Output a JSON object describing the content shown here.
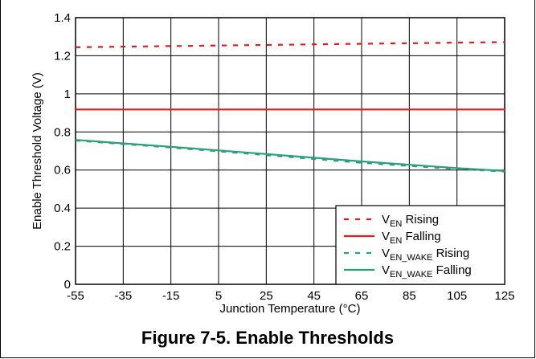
{
  "figure": {
    "caption": "Figure 7-5. Enable Thresholds"
  },
  "chart_data": {
    "type": "line",
    "xlabel": "Junction Temperature (°C)",
    "ylabel": "Enable Threshold Voltage (V)",
    "xlim": [
      -55,
      125
    ],
    "ylim": [
      0,
      1.4
    ],
    "x_ticks": [
      -55,
      -35,
      -15,
      5,
      25,
      45,
      65,
      85,
      105,
      125
    ],
    "y_ticks": [
      0,
      0.2,
      0.4,
      0.6,
      0.8,
      1,
      1.2,
      1.4
    ],
    "y_tick_labels": [
      "0",
      "0.2",
      "0.4",
      "0.6",
      "0.8",
      "1",
      "1.2",
      "1.4"
    ],
    "grid": true,
    "legend_position": "bottom-right",
    "series": [
      {
        "name_main": "V",
        "name_sub": "EN",
        "name_rest": " Rising",
        "color": "#e8191a",
        "dash": "dashed",
        "x": [
          -55,
          125
        ],
        "y": [
          1.245,
          1.272
        ]
      },
      {
        "name_main": "V",
        "name_sub": "EN",
        "name_rest": " Falling",
        "color": "#e8191a",
        "dash": "solid",
        "x": [
          -55,
          125
        ],
        "y": [
          0.918,
          0.918
        ]
      },
      {
        "name_main": "V",
        "name_sub": "EN_WAKE",
        "name_rest": " Rising",
        "color": "#2aa07a",
        "dash": "dashed",
        "x": [
          -55,
          -15,
          25,
          65,
          105,
          125
        ],
        "y": [
          0.755,
          0.718,
          0.678,
          0.638,
          0.605,
          0.592
        ]
      },
      {
        "name_main": "V",
        "name_sub": "EN_WAKE",
        "name_rest": " Falling",
        "color": "#2aa07a",
        "dash": "solid",
        "x": [
          -55,
          -15,
          25,
          65,
          105,
          125
        ],
        "y": [
          0.758,
          0.722,
          0.684,
          0.645,
          0.61,
          0.595
        ]
      }
    ]
  }
}
